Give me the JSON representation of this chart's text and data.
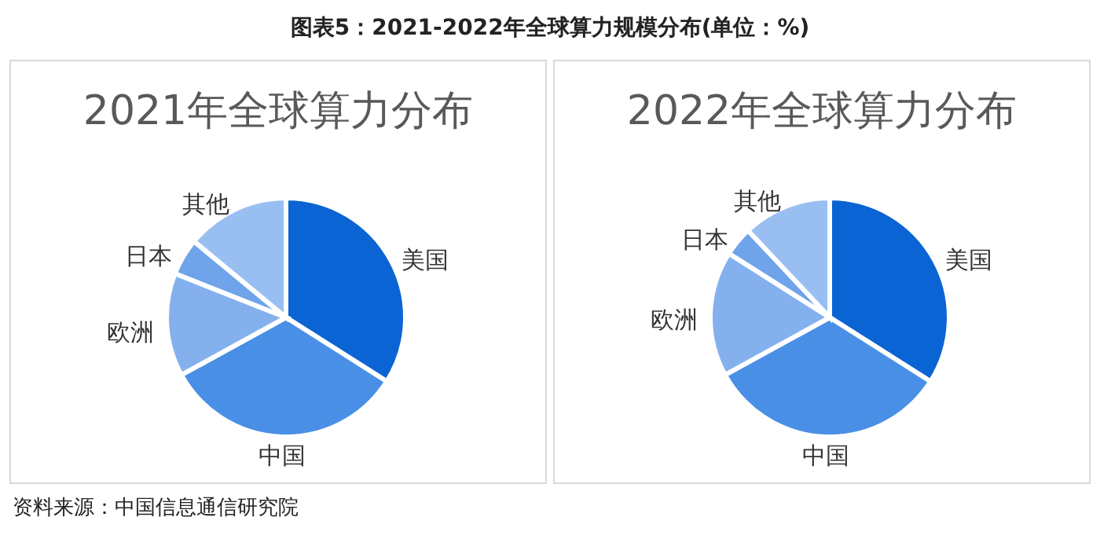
{
  "chart_data": [
    {
      "type": "pie",
      "title": "2021年全球算力分布",
      "annotations": [
        "图表5：2021-2022年全球算力规模分布(单位：%)"
      ],
      "categories": [
        "美国",
        "中国",
        "欧洲",
        "日本",
        "其他"
      ],
      "values": [
        34,
        33,
        14,
        5,
        14
      ],
      "colors": [
        "#0b64d3",
        "#4a8fe6",
        "#84b1ee",
        "#6fa3ea",
        "#99bff2"
      ]
    },
    {
      "type": "pie",
      "title": "2022年全球算力分布",
      "annotations": [
        "资料来源：中国信息通信研究院"
      ],
      "categories": [
        "美国",
        "中国",
        "欧洲",
        "日本",
        "其他"
      ],
      "values": [
        34,
        33,
        17,
        4,
        12
      ],
      "colors": [
        "#0b64d3",
        "#4a8fe6",
        "#84b1ee",
        "#6fa3ea",
        "#99bff2"
      ]
    }
  ]
}
